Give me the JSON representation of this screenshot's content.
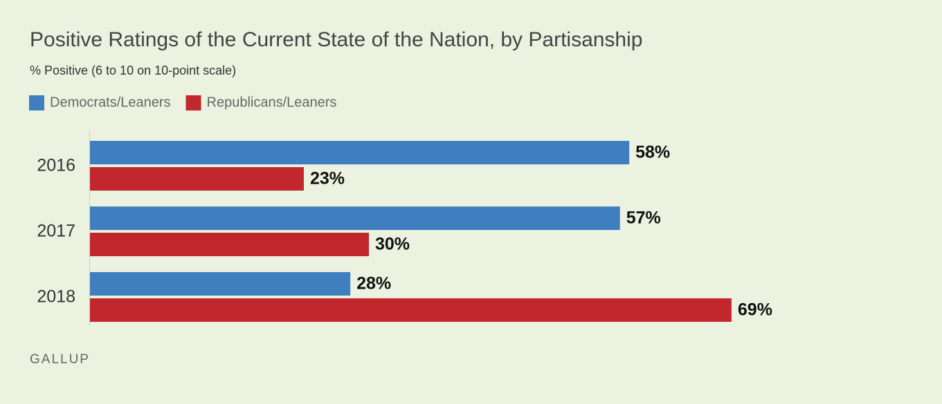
{
  "chart_data": {
    "type": "bar",
    "orientation": "horizontal",
    "title": "Positive Ratings of the Current State of the Nation, by Partisanship",
    "subtitle": "% Positive (6 to 10 on 10-point scale)",
    "categories": [
      "2016",
      "2017",
      "2018"
    ],
    "series": [
      {
        "name": "Democrats/Leaners",
        "color": "#3f7ebf",
        "values": [
          58,
          57,
          28
        ],
        "value_labels": [
          "58%",
          "57%",
          "28%"
        ]
      },
      {
        "name": "Republicans/Leaners",
        "color": "#c1272d",
        "values": [
          23,
          30,
          69
        ],
        "value_labels": [
          "23%",
          "30%",
          "69%"
        ]
      }
    ],
    "xlim": [
      0,
      90
    ],
    "legend": "top-left",
    "source": "GALLUP"
  }
}
